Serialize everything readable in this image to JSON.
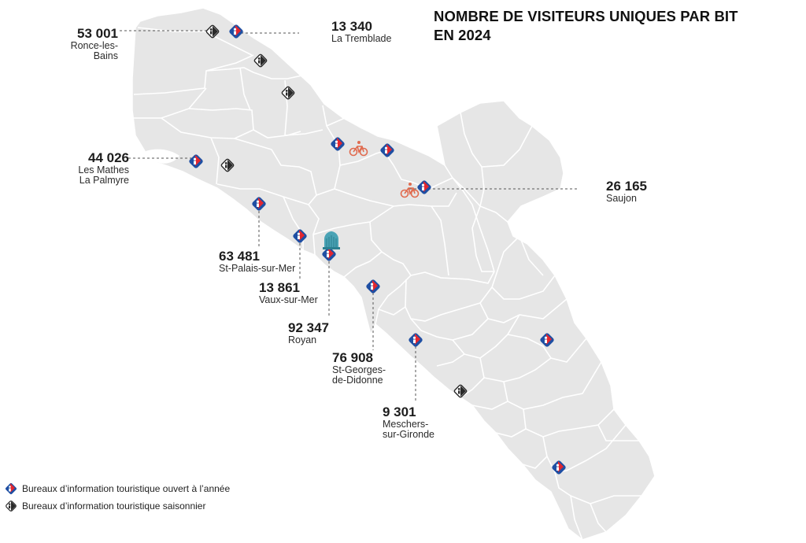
{
  "title": {
    "line1": "NOMBRE DE VISITEURS UNIQUES PAR BIT",
    "line2": "EN 2024"
  },
  "labels": [
    {
      "id": "ronce",
      "value": "53 001",
      "name_lines": [
        "Ronce-les-",
        "Bains"
      ]
    },
    {
      "id": "tremblade",
      "value": "13 340",
      "name_lines": [
        "La Tremblade"
      ]
    },
    {
      "id": "mathes",
      "value": "44 026",
      "name_lines": [
        "Les Mathes",
        "La Palmyre"
      ]
    },
    {
      "id": "saujon",
      "value": "26 165",
      "name_lines": [
        "Saujon"
      ]
    },
    {
      "id": "stpalais",
      "value": "63 481",
      "name_lines": [
        "St-Palais-sur-Mer"
      ]
    },
    {
      "id": "vaux",
      "value": "13 861",
      "name_lines": [
        "Vaux-sur-Mer"
      ]
    },
    {
      "id": "royan",
      "value": "92 347",
      "name_lines": [
        "Royan"
      ]
    },
    {
      "id": "stgeorges",
      "value": "76 908",
      "name_lines": [
        "St-Georges-",
        "de-Didonne"
      ]
    },
    {
      "id": "meschers",
      "value": "9 301",
      "name_lines": [
        "Meschers-",
        "sur-Gironde"
      ]
    }
  ],
  "legend": [
    {
      "icon": "tourist-office-year-round-icon",
      "text": "Bureaux d’information touristique ouvert à l’année"
    },
    {
      "icon": "tourist-office-seasonal-icon",
      "text": "Bureaux d’information touristique saisonnier"
    }
  ],
  "colors": {
    "land": "#e6e6e6",
    "border": "#ffffff",
    "icon_blue": "#1f4fa3",
    "icon_red": "#e3262f",
    "bike": "#e06b4f",
    "monument": "#4aa3b5",
    "leader": "#555555"
  }
}
